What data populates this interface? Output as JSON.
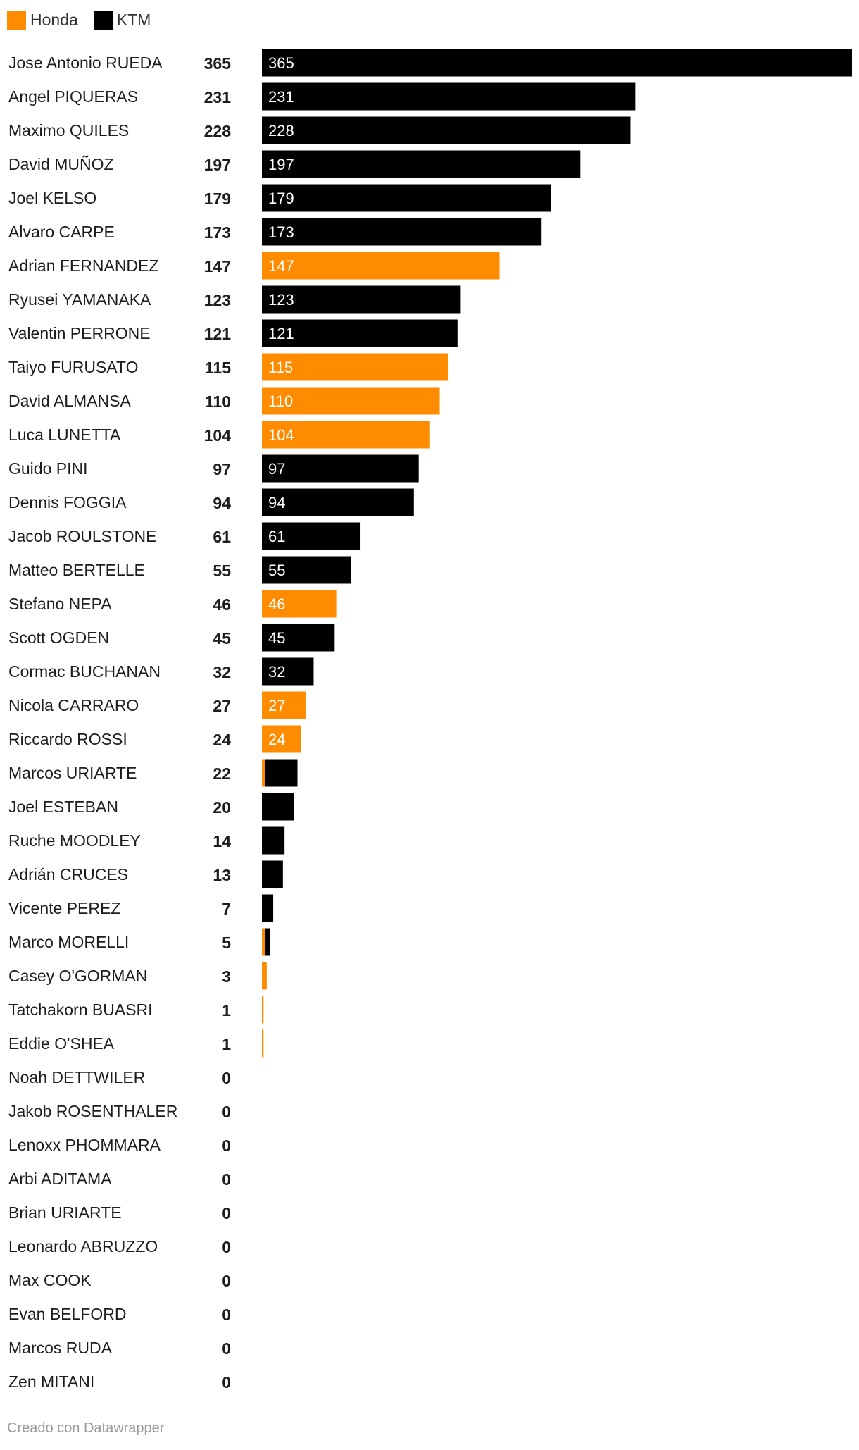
{
  "legend": [
    {
      "name": "Honda",
      "color": "#ff8c00"
    },
    {
      "name": "KTM",
      "color": "#000000"
    }
  ],
  "footer": "Creado con Datawrapper",
  "chart_data": {
    "type": "bar",
    "orientation": "horizontal",
    "stacked": true,
    "xlim": [
      0,
      365
    ],
    "categories": [
      "Jose Antonio RUEDA",
      "Angel PIQUERAS",
      "Maximo QUILES",
      "David MUÑOZ",
      "Joel KELSO",
      "Alvaro CARPE",
      "Adrian FERNANDEZ",
      "Ryusei YAMANAKA",
      "Valentin PERRONE",
      "Taiyo FURUSATO",
      "David ALMANSA",
      "Luca LUNETTA",
      "Guido PINI",
      "Dennis FOGGIA",
      "Jacob ROULSTONE",
      "Matteo BERTELLE",
      "Stefano NEPA",
      "Scott OGDEN",
      "Cormac BUCHANAN",
      "Nicola CARRARO",
      "Riccardo ROSSI",
      "Marcos URIARTE",
      "Joel ESTEBAN",
      "Ruche MOODLEY",
      "Adrián CRUCES",
      "Vicente PEREZ",
      "Marco MORELLI",
      "Casey O'GORMAN",
      "Tatchakorn BUASRI",
      "Eddie O'SHEA",
      "Noah DETTWILER",
      "Jakob ROSENTHALER",
      "Lenoxx PHOMMARA",
      "Arbi ADITAMA",
      "Brian URIARTE",
      "Leonardo ABRUZZO",
      "Max COOK",
      "Evan BELFORD",
      "Marcos RUDA",
      "Zen MITANI"
    ],
    "totals": [
      365,
      231,
      228,
      197,
      179,
      173,
      147,
      123,
      121,
      115,
      110,
      104,
      97,
      94,
      61,
      55,
      46,
      45,
      32,
      27,
      24,
      22,
      20,
      14,
      13,
      7,
      5,
      3,
      1,
      1,
      0,
      0,
      0,
      0,
      0,
      0,
      0,
      0,
      0,
      0
    ],
    "series": [
      {
        "name": "Honda",
        "color": "#ff8c00",
        "values": [
          0,
          0,
          0,
          0,
          0,
          0,
          147,
          0,
          0,
          115,
          110,
          104,
          0,
          0,
          0,
          0,
          46,
          0,
          0,
          27,
          24,
          2,
          0,
          0,
          0,
          0,
          2,
          3,
          1,
          1,
          0,
          0,
          0,
          0,
          0,
          0,
          0,
          0,
          0,
          0
        ]
      },
      {
        "name": "KTM",
        "color": "#000000",
        "values": [
          365,
          231,
          228,
          197,
          179,
          173,
          0,
          123,
          121,
          0,
          0,
          0,
          97,
          94,
          61,
          55,
          0,
          45,
          32,
          0,
          0,
          20,
          20,
          14,
          13,
          7,
          3,
          0,
          0,
          0,
          0,
          0,
          0,
          0,
          0,
          0,
          0,
          0,
          0,
          0
        ]
      }
    ],
    "bar_value_labels": [
      "365",
      "231",
      "228",
      "197",
      "179",
      "173",
      "147",
      "123",
      "121",
      "115",
      "110",
      "104",
      "97",
      "94",
      "61",
      "55",
      "46",
      "45",
      "32",
      "27",
      "24",
      "",
      "",
      "",
      "",
      "",
      "",
      "",
      "",
      "",
      "",
      "",
      "",
      "",
      "",
      "",
      "",
      "",
      "",
      ""
    ]
  }
}
